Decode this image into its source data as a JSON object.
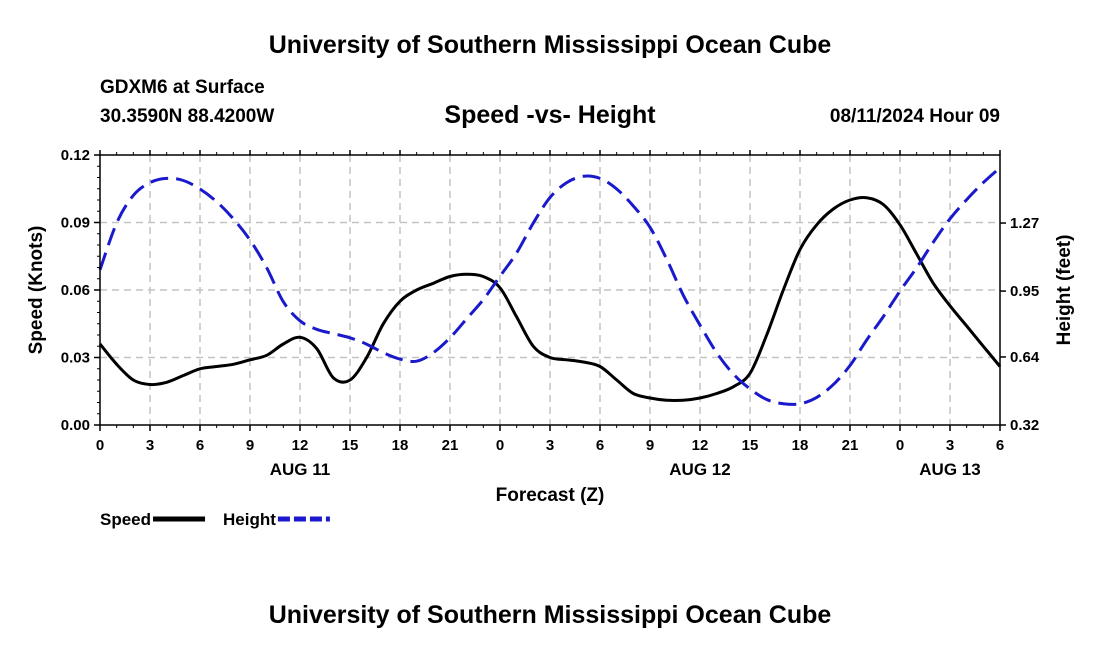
{
  "header": {
    "title": "University of Southern Mississippi Ocean Cube",
    "station": "GDXM6 at Surface",
    "coordinates": "30.3590N  88.4200W",
    "subtitle": "Speed -vs- Height",
    "datetime": "08/11/2024 Hour 09"
  },
  "footer": {
    "title": "University of Southern Mississippi Ocean Cube"
  },
  "chart_data": {
    "type": "line",
    "title": "Speed -vs- Height",
    "xlabel": "Forecast (Z)",
    "ylabel_left": "Speed (Knots)",
    "ylabel_right": "Height (feet)",
    "x_range_hours": [
      0,
      54
    ],
    "x_ticks": [
      {
        "hour": 0,
        "label": "0"
      },
      {
        "hour": 3,
        "label": "3"
      },
      {
        "hour": 6,
        "label": "6"
      },
      {
        "hour": 9,
        "label": "9"
      },
      {
        "hour": 12,
        "label": "12"
      },
      {
        "hour": 15,
        "label": "15"
      },
      {
        "hour": 18,
        "label": "18"
      },
      {
        "hour": 21,
        "label": "21"
      },
      {
        "hour": 24,
        "label": "0"
      },
      {
        "hour": 27,
        "label": "3"
      },
      {
        "hour": 30,
        "label": "6"
      },
      {
        "hour": 33,
        "label": "9"
      },
      {
        "hour": 36,
        "label": "12"
      },
      {
        "hour": 39,
        "label": "15"
      },
      {
        "hour": 42,
        "label": "18"
      },
      {
        "hour": 45,
        "label": "21"
      },
      {
        "hour": 48,
        "label": "0"
      },
      {
        "hour": 51,
        "label": "3"
      },
      {
        "hour": 54,
        "label": "6"
      }
    ],
    "date_labels": [
      {
        "hour": 12,
        "label": "AUG 11"
      },
      {
        "hour": 36,
        "label": "AUG 12"
      },
      {
        "hour": 51,
        "label": "AUG 13"
      }
    ],
    "y_left": {
      "range": [
        0,
        0.12
      ],
      "ticks": [
        "0.00",
        "0.03",
        "0.06",
        "0.09",
        "0.12"
      ]
    },
    "y_right": {
      "range": [
        0.32,
        1.59
      ],
      "ticks": [
        "0.32",
        "0.64",
        "0.95",
        "1.27"
      ]
    },
    "grid": true,
    "legend_position": "bottom-left",
    "series": [
      {
        "name": "Speed",
        "axis": "left",
        "color": "#000000",
        "style": "solid",
        "points": [
          [
            0,
            0.036
          ],
          [
            1,
            0.027
          ],
          [
            2,
            0.02
          ],
          [
            3,
            0.018
          ],
          [
            4,
            0.019
          ],
          [
            5,
            0.022
          ],
          [
            6,
            0.025
          ],
          [
            7,
            0.026
          ],
          [
            8,
            0.027
          ],
          [
            9,
            0.029
          ],
          [
            10,
            0.031
          ],
          [
            11,
            0.036
          ],
          [
            12,
            0.039
          ],
          [
            13,
            0.034
          ],
          [
            14,
            0.021
          ],
          [
            15,
            0.02
          ],
          [
            16,
            0.03
          ],
          [
            17,
            0.045
          ],
          [
            18,
            0.055
          ],
          [
            19,
            0.06
          ],
          [
            20,
            0.063
          ],
          [
            21,
            0.066
          ],
          [
            22,
            0.067
          ],
          [
            23,
            0.066
          ],
          [
            24,
            0.061
          ],
          [
            25,
            0.048
          ],
          [
            26,
            0.035
          ],
          [
            27,
            0.03
          ],
          [
            28,
            0.029
          ],
          [
            29,
            0.028
          ],
          [
            30,
            0.026
          ],
          [
            31,
            0.02
          ],
          [
            32,
            0.014
          ],
          [
            33,
            0.012
          ],
          [
            34,
            0.011
          ],
          [
            35,
            0.011
          ],
          [
            36,
            0.012
          ],
          [
            37,
            0.014
          ],
          [
            38,
            0.017
          ],
          [
            39,
            0.023
          ],
          [
            40,
            0.04
          ],
          [
            41,
            0.06
          ],
          [
            42,
            0.078
          ],
          [
            43,
            0.089
          ],
          [
            44,
            0.096
          ],
          [
            45,
            0.1
          ],
          [
            46,
            0.101
          ],
          [
            47,
            0.098
          ],
          [
            48,
            0.089
          ],
          [
            49,
            0.076
          ],
          [
            50,
            0.063
          ],
          [
            51,
            0.053
          ],
          [
            52,
            0.044
          ],
          [
            53,
            0.035
          ],
          [
            54,
            0.026
          ]
        ]
      },
      {
        "name": "Height",
        "axis": "right",
        "color": "#1a1acc",
        "style": "dashed",
        "points": [
          [
            0,
            1.05
          ],
          [
            1,
            1.27
          ],
          [
            2,
            1.4
          ],
          [
            3,
            1.46
          ],
          [
            4,
            1.48
          ],
          [
            5,
            1.47
          ],
          [
            6,
            1.43
          ],
          [
            7,
            1.37
          ],
          [
            8,
            1.29
          ],
          [
            9,
            1.19
          ],
          [
            10,
            1.06
          ],
          [
            11,
            0.9
          ],
          [
            12,
            0.81
          ],
          [
            13,
            0.77
          ],
          [
            14,
            0.75
          ],
          [
            15,
            0.73
          ],
          [
            16,
            0.7
          ],
          [
            17,
            0.66
          ],
          [
            18,
            0.63
          ],
          [
            19,
            0.62
          ],
          [
            20,
            0.66
          ],
          [
            21,
            0.73
          ],
          [
            22,
            0.82
          ],
          [
            23,
            0.91
          ],
          [
            24,
            1.02
          ],
          [
            25,
            1.13
          ],
          [
            26,
            1.27
          ],
          [
            27,
            1.39
          ],
          [
            28,
            1.46
          ],
          [
            29,
            1.49
          ],
          [
            30,
            1.48
          ],
          [
            31,
            1.43
          ],
          [
            32,
            1.35
          ],
          [
            33,
            1.25
          ],
          [
            34,
            1.1
          ],
          [
            35,
            0.93
          ],
          [
            36,
            0.79
          ],
          [
            37,
            0.66
          ],
          [
            38,
            0.56
          ],
          [
            39,
            0.49
          ],
          [
            40,
            0.44
          ],
          [
            41,
            0.42
          ],
          [
            42,
            0.42
          ],
          [
            43,
            0.45
          ],
          [
            44,
            0.51
          ],
          [
            45,
            0.6
          ],
          [
            46,
            0.72
          ],
          [
            47,
            0.83
          ],
          [
            48,
            0.95
          ],
          [
            49,
            1.06
          ],
          [
            50,
            1.18
          ],
          [
            51,
            1.29
          ],
          [
            52,
            1.38
          ],
          [
            53,
            1.46
          ],
          [
            54,
            1.53
          ]
        ]
      }
    ]
  }
}
